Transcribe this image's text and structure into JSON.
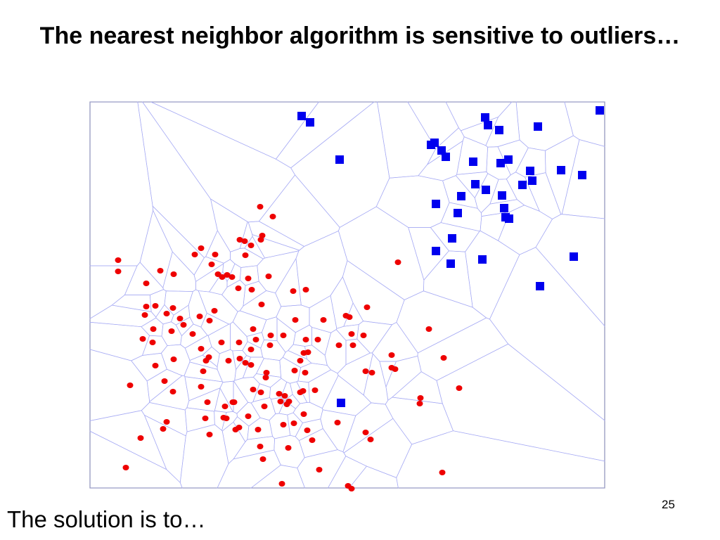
{
  "chart_data": {
    "type": "scatter",
    "title": "The nearest neighbor algorithm is sensitive to outliers…",
    "xlim": [
      0,
      732
    ],
    "ylim": [
      0,
      549
    ],
    "series": [
      {
        "color": "#0000ee",
        "marker": "square",
        "x": [
          301,
          313,
          562,
          566,
          582,
          637,
          725,
          355,
          485,
          490,
          500,
          506,
          545,
          584,
          595,
          626,
          670,
          700,
          615,
          629,
          548,
          563,
          528,
          586,
          492,
          589,
          523,
          591,
          596,
          515,
          492,
          558,
          513,
          688,
          640,
          357
        ],
        "y": [
          529,
          520,
          527,
          516,
          509,
          514,
          537,
          467,
          488,
          491,
          480,
          471,
          464,
          462,
          467,
          451,
          452,
          445,
          431,
          437,
          432,
          424,
          415,
          416,
          404,
          398,
          391,
          385,
          383,
          355,
          337,
          325,
          319,
          329,
          287,
          121
        ]
      },
      {
        "color": "#ee0000",
        "marker": "circle",
        "x": [
          242,
          260,
          245,
          213,
          220,
          243,
          229,
          158,
          149,
          178,
          221,
          40,
          40,
          173,
          100,
          119,
          182,
          188,
          195,
          202,
          225,
          254,
          438,
          80,
          211,
          230,
          289,
          307,
          244,
          394,
          80,
          93,
          118,
          109,
          177,
          156,
          170,
          364,
          369,
          78,
          128,
          133,
          292,
          332,
          90,
          116,
          146,
          232,
          372,
          389,
          482,
          75,
          89,
          187,
          212,
          236,
          257,
          275,
          307,
          324,
          354,
          374,
          256,
          158,
          229,
          310,
          304,
          169,
          165,
          197,
          213,
          221,
          229,
          299,
          429,
          503,
          119,
          93,
          251,
          250,
          291,
          306,
          161,
          392,
          401,
          429,
          434,
          57,
          106,
          118,
          158,
          203,
          232,
          243,
          269,
          277,
          299,
          303,
          320,
          525,
          470,
          469,
          167,
          192,
          205,
          248,
          271,
          280,
          283,
          304,
          109,
          104,
          164,
          190,
          194,
          225,
          275,
          290,
          352,
          207,
          212,
          239,
          309,
          170,
          72,
          392,
          399,
          316,
          242,
          282,
          246,
          51,
          326,
          501,
          273,
          367,
          372
        ],
        "y": [
          400,
          386,
          359,
          353,
          351,
          353,
          345,
          341,
          332,
          332,
          331,
          324,
          308,
          318,
          309,
          304,
          304,
          300,
          303,
          300,
          298,
          301,
          321,
          291,
          284,
          282,
          280,
          282,
          261,
          257,
          258,
          259,
          256,
          248,
          252,
          244,
          238,
          245,
          243,
          246,
          241,
          232,
          239,
          239,
          226,
          223,
          219,
          226,
          219,
          217,
          226,
          212,
          207,
          207,
          207,
          211,
          217,
          217,
          211,
          211,
          203,
          203,
          203,
          198,
          197,
          193,
          192,
          186,
          181,
          181,
          184,
          178,
          175,
          181,
          189,
          185,
          183,
          174,
          164,
          157,
          167,
          164,
          166,
          166,
          164,
          171,
          169,
          146,
          152,
          137,
          144,
          122,
          140,
          136,
          134,
          131,
          136,
          138,
          139,
          142,
          128,
          120,
          122,
          116,
          122,
          116,
          123,
          119,
          123,
          105,
          94,
          84,
          99,
          100,
          99,
          102,
          90,
          92,
          93,
          83,
          86,
          83,
          82,
          76,
          71,
          79,
          69,
          68,
          59,
          57,
          41,
          29,
          26,
          22,
          6,
          3,
          -1
        ]
      }
    ]
  },
  "footer_text": "The solution is to…",
  "page_number": "25"
}
